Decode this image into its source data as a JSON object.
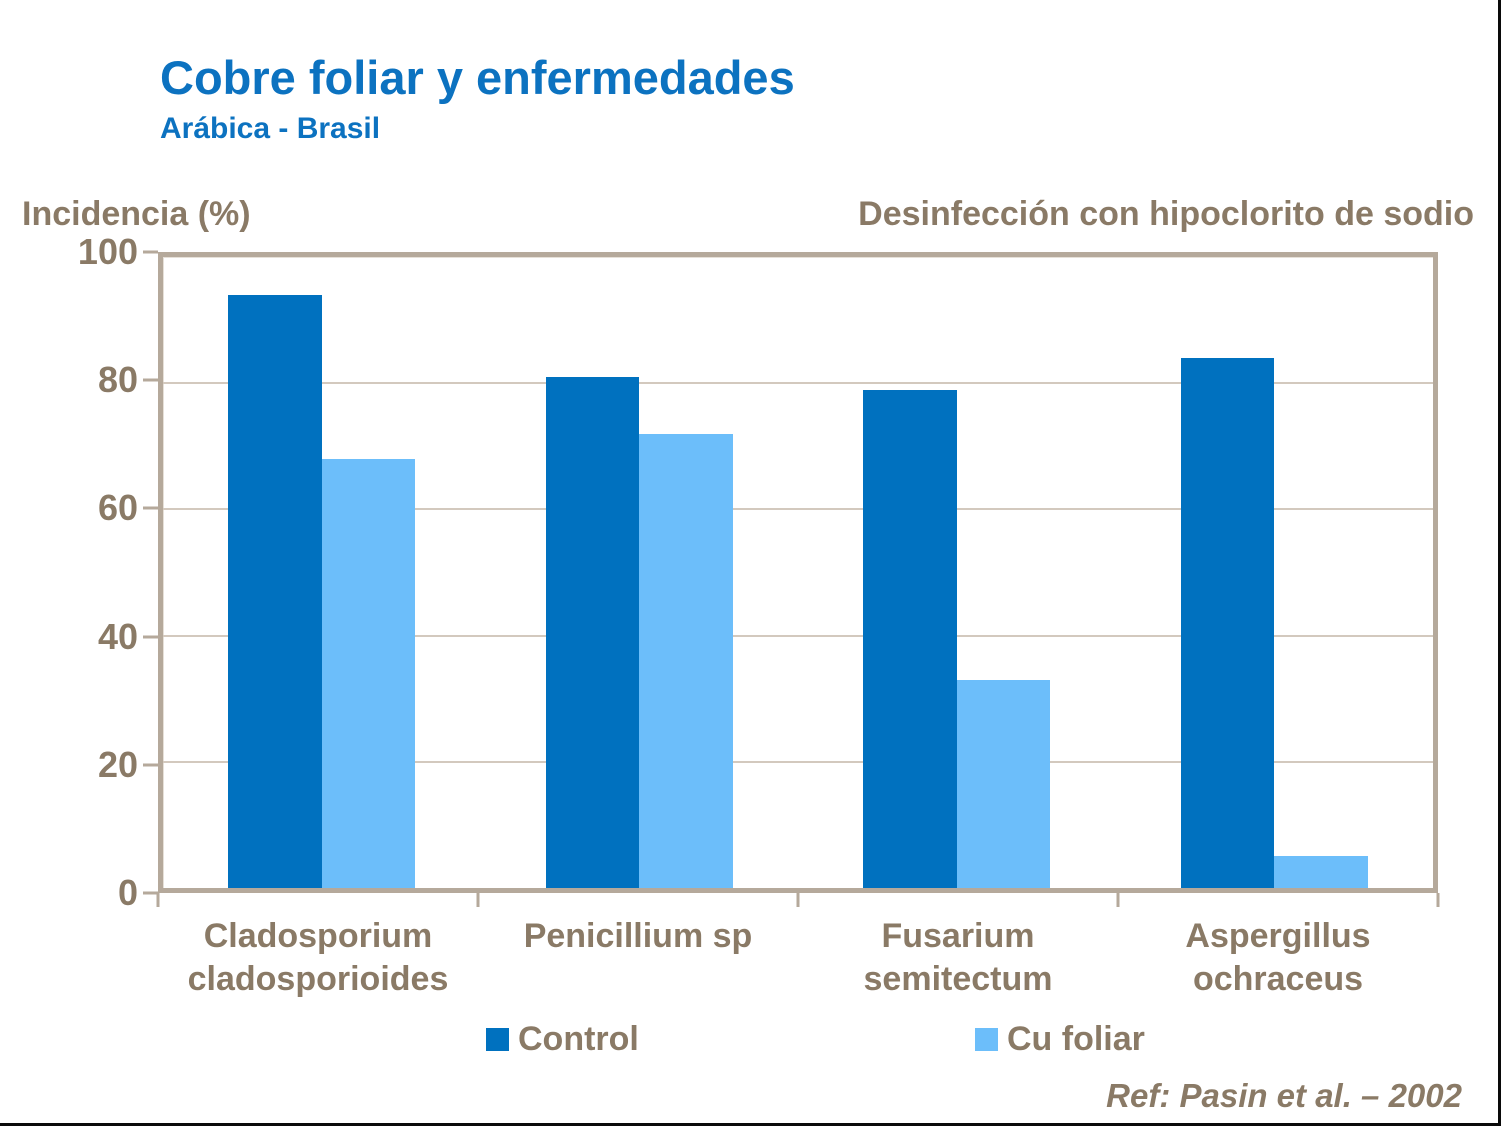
{
  "slide": {
    "title": "Cobre foliar y enfermedades",
    "subtitle": "Arábica - Brasil",
    "y_axis_title": "Incidencia (%)",
    "right_header": "Desinfección con hipoclorito de sodio",
    "reference": "Ref: Pasin et al. – 2002"
  },
  "colors": {
    "title_blue": "#0c72c0",
    "control": "#0071bf",
    "cu_foliar": "#6cbefa",
    "text_brown": "#8a7a66",
    "plot_frame": "#b5a99b",
    "gridline": "#d3c9be"
  },
  "legend": {
    "items": [
      {
        "label": "Control",
        "color": "#0071bf"
      },
      {
        "label": "Cu foliar",
        "color": "#6cbefa"
      }
    ]
  },
  "chart_data": {
    "type": "bar",
    "title": "Cobre foliar y enfermedades",
    "subtitle": "Arábica - Brasil",
    "annotation": "Desinfección con hipoclorito de sodio",
    "ylabel": "Incidencia (%)",
    "ylim": [
      0,
      100
    ],
    "yticks": [
      0,
      20,
      40,
      60,
      80,
      100
    ],
    "grid": true,
    "legend_position": "bottom",
    "categories": [
      "Cladosporium cladosporioides",
      "Penicillium sp",
      "Fusarium semitectum",
      "Aspergillus ochraceus"
    ],
    "series": [
      {
        "name": "Control",
        "values": [
          94,
          81,
          79,
          84
        ]
      },
      {
        "name": "Cu foliar",
        "values": [
          68,
          72,
          33,
          5
        ]
      }
    ],
    "reference": "Ref: Pasin et al. – 2002"
  }
}
